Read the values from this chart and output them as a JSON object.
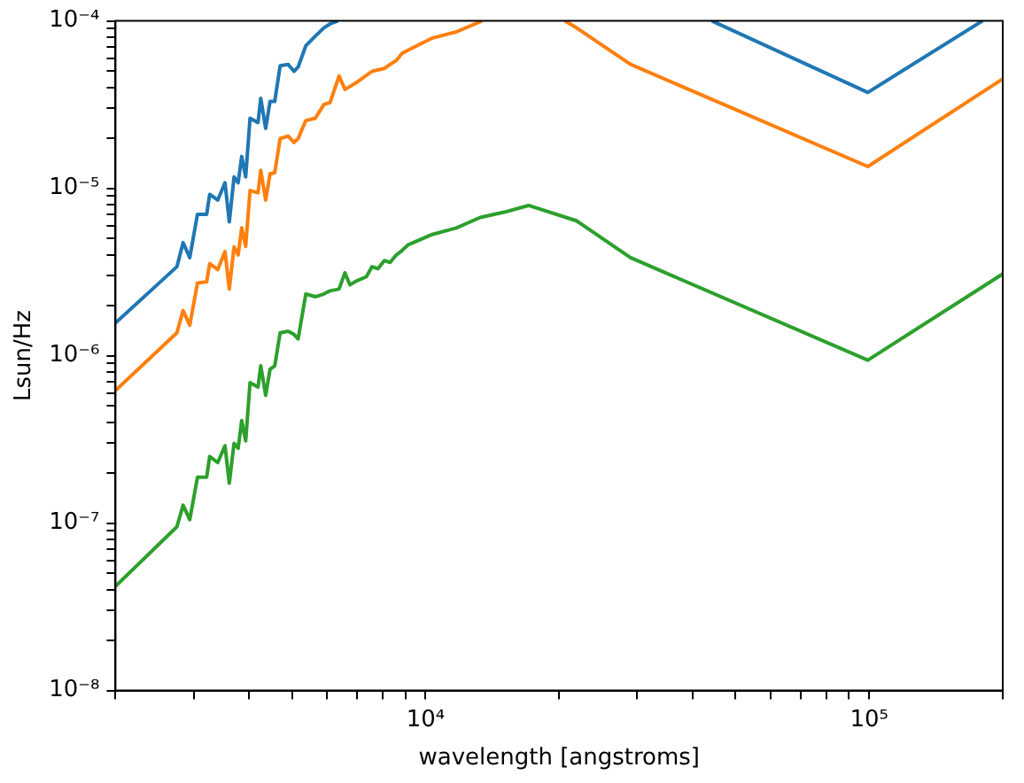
{
  "chart_data": {
    "type": "line",
    "xlabel": "wavelength [angstroms]",
    "ylabel": "Lsun/Hz",
    "log": "xy",
    "grid": false,
    "legend": false,
    "marker": "none",
    "line_style": "solid",
    "xlim": [
      2000,
      200000
    ],
    "ylim": [
      1e-08,
      0.0001
    ],
    "xticks": [
      {
        "value": 2000,
        "label": null
      },
      {
        "value": 3000,
        "label": null
      },
      {
        "value": 4000,
        "label": null
      },
      {
        "value": 5000,
        "label": null
      },
      {
        "value": 6000,
        "label": null
      },
      {
        "value": 7000,
        "label": null
      },
      {
        "value": 8000,
        "label": null
      },
      {
        "value": 9000,
        "label": null
      },
      {
        "value": 10000,
        "label": "10⁴"
      },
      {
        "value": 20000,
        "label": null
      },
      {
        "value": 30000,
        "label": null
      },
      {
        "value": 40000,
        "label": null
      },
      {
        "value": 50000,
        "label": null
      },
      {
        "value": 60000,
        "label": null
      },
      {
        "value": 70000,
        "label": null
      },
      {
        "value": 80000,
        "label": null
      },
      {
        "value": 90000,
        "label": null
      },
      {
        "value": 100000,
        "label": "10⁵"
      },
      {
        "value": 200000,
        "label": null
      }
    ],
    "yticks": [
      {
        "value": 1e-08,
        "label": "10⁻⁸"
      },
      {
        "value": 2e-08,
        "label": null
      },
      {
        "value": 3e-08,
        "label": null
      },
      {
        "value": 4e-08,
        "label": null
      },
      {
        "value": 5e-08,
        "label": null
      },
      {
        "value": 6e-08,
        "label": null
      },
      {
        "value": 7e-08,
        "label": null
      },
      {
        "value": 8e-08,
        "label": null
      },
      {
        "value": 9e-08,
        "label": null
      },
      {
        "value": 1e-07,
        "label": "10⁻⁷"
      },
      {
        "value": 2e-07,
        "label": null
      },
      {
        "value": 3e-07,
        "label": null
      },
      {
        "value": 4e-07,
        "label": null
      },
      {
        "value": 5e-07,
        "label": null
      },
      {
        "value": 6e-07,
        "label": null
      },
      {
        "value": 7e-07,
        "label": null
      },
      {
        "value": 8e-07,
        "label": null
      },
      {
        "value": 9e-07,
        "label": null
      },
      {
        "value": 1e-06,
        "label": "10⁻⁶"
      },
      {
        "value": 2e-06,
        "label": null
      },
      {
        "value": 3e-06,
        "label": null
      },
      {
        "value": 4e-06,
        "label": null
      },
      {
        "value": 5e-06,
        "label": null
      },
      {
        "value": 6e-06,
        "label": null
      },
      {
        "value": 7e-06,
        "label": null
      },
      {
        "value": 8e-06,
        "label": null
      },
      {
        "value": 9e-06,
        "label": null
      },
      {
        "value": 1e-05,
        "label": "10⁻⁵"
      },
      {
        "value": 2e-05,
        "label": null
      },
      {
        "value": 3e-05,
        "label": null
      },
      {
        "value": 4e-05,
        "label": null
      },
      {
        "value": 5e-05,
        "label": null
      },
      {
        "value": 6e-05,
        "label": null
      },
      {
        "value": 7e-05,
        "label": null
      },
      {
        "value": 8e-05,
        "label": null
      },
      {
        "value": 9e-05,
        "label": null
      },
      {
        "value": 0.0001,
        "label": "10⁻⁴"
      }
    ],
    "series": [
      {
        "color": "#1f77b4",
        "x": [
          2000,
          2750,
          2840,
          2940,
          3060,
          3210,
          3260,
          3400,
          3530,
          3610,
          3700,
          3780,
          3850,
          3930,
          4020,
          4190,
          4250,
          4360,
          4460,
          4570,
          4700,
          4900,
          5050,
          5160,
          5370,
          5640,
          5900,
          6090,
          6340,
          20000,
          44200,
          99300,
          180000
        ],
        "values": [
          1.57e-06,
          3.4e-06,
          4.74e-06,
          3.85e-06,
          7e-06,
          7e-06,
          9.2e-06,
          8.5e-06,
          1.08e-05,
          6.3e-06,
          1.17e-05,
          1.08e-05,
          1.55e-05,
          1.17e-05,
          2.62e-05,
          2.47e-05,
          3.45e-05,
          2.28e-05,
          3.3e-05,
          3.3e-05,
          5.4e-05,
          5.5e-05,
          5e-05,
          5.3e-05,
          7.1e-05,
          8.1e-05,
          9.1e-05,
          9.6e-05,
          0.0001,
          null,
          0.0001,
          3.74e-05,
          0.0001
        ]
      },
      {
        "color": "#ff7f0e",
        "x": [
          2000,
          2750,
          2840,
          2940,
          3060,
          3210,
          3260,
          3400,
          3530,
          3610,
          3700,
          3780,
          3850,
          3930,
          4020,
          4190,
          4250,
          4360,
          4460,
          4570,
          4700,
          4900,
          5050,
          5160,
          5370,
          5640,
          5900,
          6090,
          6380,
          6580,
          7010,
          7570,
          8070,
          8320,
          8590,
          8850,
          9140,
          10350,
          11730,
          13400,
          16000,
          20600,
          21880,
          28970,
          99300,
          200000
        ],
        "values": [
          6.2e-07,
          1.37e-06,
          1.86e-06,
          1.52e-06,
          2.72e-06,
          2.76e-06,
          3.55e-06,
          3.27e-06,
          4.19e-06,
          2.5e-06,
          4.47e-06,
          4e-06,
          5.8e-06,
          4.5e-06,
          9.7e-06,
          9.4e-06,
          1.28e-05,
          8.5e-06,
          1.22e-05,
          1.24e-05,
          1.98e-05,
          2.05e-05,
          1.88e-05,
          1.98e-05,
          2.54e-05,
          2.62e-05,
          3.17e-05,
          3.25e-05,
          4.68e-05,
          3.9e-05,
          4.31e-05,
          5e-05,
          5.2e-05,
          5.5e-05,
          5.8e-05,
          6.4e-05,
          6.7e-05,
          7.9e-05,
          8.6e-05,
          0.0001,
          null,
          0.0001,
          9.1e-05,
          5.5e-05,
          1.35e-05,
          4.5e-05
        ]
      },
      {
        "color": "#2ca02c",
        "x": [
          2000,
          2750,
          2840,
          2940,
          3060,
          3210,
          3260,
          3400,
          3530,
          3610,
          3700,
          3780,
          3850,
          3930,
          4020,
          4190,
          4250,
          4360,
          4460,
          4570,
          4700,
          4900,
          5050,
          5160,
          5370,
          5640,
          5900,
          6090,
          6380,
          6580,
          6750,
          7010,
          7350,
          7570,
          7810,
          8070,
          8320,
          8590,
          8850,
          9140,
          10350,
          11730,
          13280,
          15030,
          17060,
          21880,
          28970,
          99300,
          200000
        ],
        "values": [
          4.2e-08,
          9.5e-08,
          1.28e-07,
          1.05e-07,
          1.88e-07,
          1.88e-07,
          2.5e-07,
          2.3e-07,
          2.9e-07,
          1.73e-07,
          3e-07,
          2.8e-07,
          4.1e-07,
          3.1e-07,
          6.9e-07,
          6.5e-07,
          8.7e-07,
          5.8e-07,
          8.3e-07,
          8.7e-07,
          1.37e-06,
          1.4e-06,
          1.34e-06,
          1.26e-06,
          2.34e-06,
          2.25e-06,
          2.34e-06,
          2.44e-06,
          2.5e-06,
          3.13e-06,
          2.65e-06,
          2.81e-06,
          2.96e-06,
          3.4e-06,
          3.31e-06,
          3.7e-06,
          3.61e-06,
          4e-06,
          4.25e-06,
          4.6e-06,
          5.3e-06,
          5.8e-06,
          6.7e-06,
          7.2e-06,
          7.9e-06,
          6.4e-06,
          3.85e-06,
          9.4e-07,
          3.08e-06
        ]
      }
    ]
  }
}
